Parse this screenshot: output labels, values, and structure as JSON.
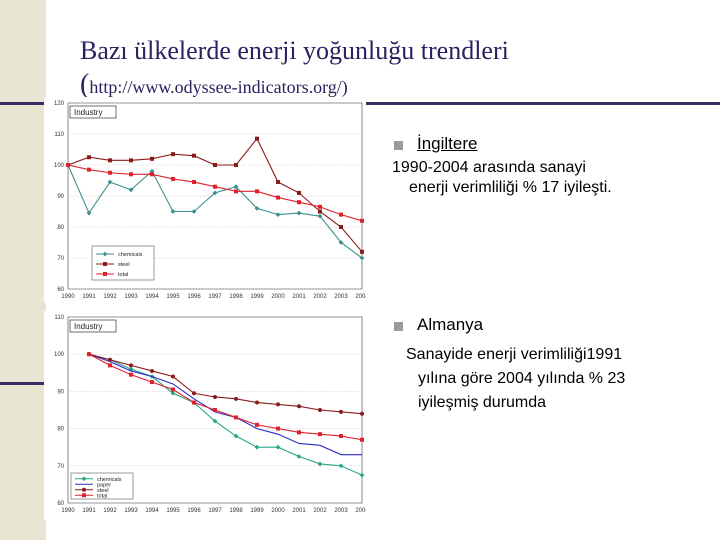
{
  "slide": {
    "title": "Bazı ülkelerde enerji yoğunluğu trendleri",
    "title_url_paren_open": "(",
    "title_url": "http://www.odyssee-indicators.org/)"
  },
  "notes": [
    {
      "country": "İngiltere",
      "line1": "1990-2004 arasında sanayi",
      "line2": "enerji verimliliği % 17 iyileşti."
    },
    {
      "country": "Almanya",
      "line1": "Sanayide enerji verimliliği1991",
      "line2": "yılına göre 2004 yılında % 23",
      "line3": "iyileşmiş durumda"
    }
  ],
  "chart_data": [
    {
      "type": "line",
      "tag": "Industry",
      "x": [
        "1990",
        "1991",
        "1992",
        "1993",
        "1994",
        "1995",
        "1996",
        "1997",
        "1998",
        "1999",
        "2000",
        "2001",
        "2002",
        "2003",
        "2004"
      ],
      "ylim": [
        60,
        120
      ],
      "yticks": [
        60,
        70,
        80,
        90,
        100,
        110,
        120
      ],
      "grid": true,
      "legend": "bottom-left",
      "series": [
        {
          "name": "chemicals",
          "color": "#3f8f8f",
          "marker": "diamond",
          "values": [
            100,
            84.5,
            94.5,
            92,
            98,
            85,
            85,
            91,
            93,
            86,
            84,
            84.5,
            83.5,
            75,
            70
          ]
        },
        {
          "name": "steel",
          "color": "#8b1a1a",
          "marker": "square",
          "values": [
            100,
            102.5,
            101.5,
            101.5,
            102,
            103.5,
            103,
            100,
            100,
            108.5,
            94.5,
            91,
            85,
            80,
            72
          ]
        },
        {
          "name": "total",
          "color": "#e0202a",
          "marker": "square",
          "values": [
            100,
            98.5,
            97.5,
            97,
            97,
            95.5,
            94.5,
            93,
            91.5,
            91.5,
            89.5,
            88,
            86.5,
            84,
            82
          ]
        }
      ]
    },
    {
      "type": "line",
      "tag": "Industry",
      "x": [
        "1990",
        "1991",
        "1992",
        "1993",
        "1994",
        "1995",
        "1996",
        "1997",
        "1998",
        "1999",
        "2000",
        "2001",
        "2002",
        "2003",
        "2004"
      ],
      "ylim": [
        60,
        110
      ],
      "yticks": [
        60,
        70,
        80,
        90,
        100,
        110
      ],
      "grid": true,
      "legend": "bottom-left",
      "series": [
        {
          "name": "chemicals",
          "color": "#2ca68a",
          "marker": "diamond",
          "values": [
            null,
            100,
            98.5,
            96,
            94,
            89.5,
            87,
            82,
            78,
            75,
            75,
            72.5,
            70.5,
            70,
            67.5
          ]
        },
        {
          "name": "paper",
          "color": "#2c2ccc",
          "marker": "none",
          "values": [
            null,
            100,
            98,
            95.5,
            94,
            92,
            88,
            84.5,
            83,
            80,
            78.5,
            76,
            75.5,
            73,
            73
          ]
        },
        {
          "name": "steel",
          "color": "#8b1a1a",
          "marker": "circle",
          "values": [
            null,
            100,
            98.5,
            97,
            95.5,
            94,
            89.5,
            88.5,
            88,
            87,
            86.5,
            86,
            85,
            84.5,
            84
          ]
        },
        {
          "name": "total",
          "color": "#e0202a",
          "marker": "square",
          "values": [
            null,
            100,
            97,
            94.5,
            92.5,
            90.5,
            87,
            85,
            83,
            81,
            80,
            79,
            78.5,
            78,
            77
          ]
        }
      ]
    }
  ]
}
